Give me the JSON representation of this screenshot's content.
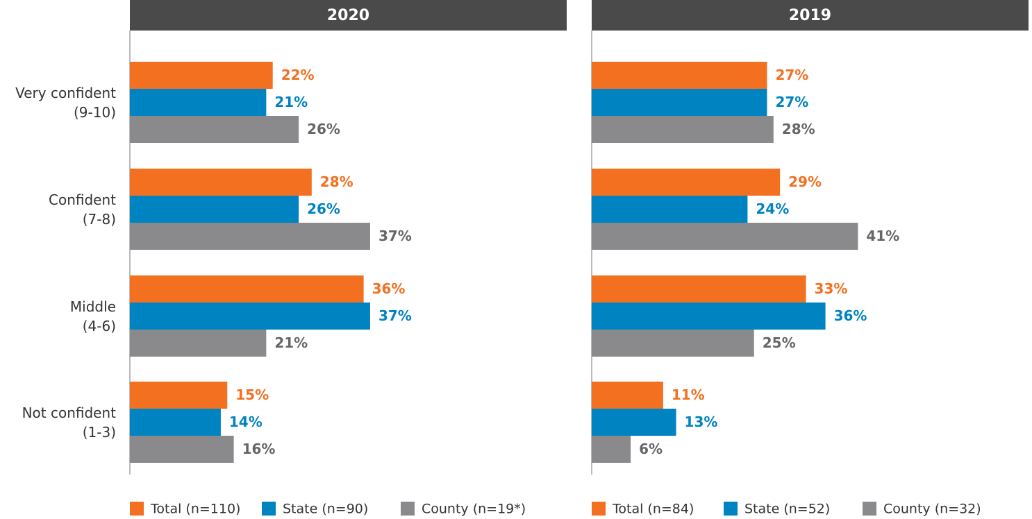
{
  "chart_data": [
    {
      "type": "bar",
      "title": "2020",
      "categories": [
        "Very confident\n(9-10)",
        "Confident\n(7-8)",
        "Middle\n(4-6)",
        "Not confident\n(1-3)"
      ],
      "series": [
        {
          "name": "Total (n=110)",
          "color": "#f37021",
          "values": [
            22,
            28,
            36,
            15
          ],
          "value_labels": [
            "22%",
            "28%",
            "36%",
            "15%"
          ]
        },
        {
          "name": "State (n=90)",
          "color": "#0083c1",
          "values": [
            21,
            26,
            37,
            14
          ],
          "value_labels": [
            "21%",
            "26%",
            "37%",
            "14%"
          ]
        },
        {
          "name": "County (n=19*)",
          "color": "#8a8a8c",
          "values": [
            26,
            37,
            21,
            16
          ],
          "value_labels": [
            "26%",
            "37%",
            "21%",
            "16%"
          ]
        }
      ]
    },
    {
      "type": "bar",
      "title": "2019",
      "series": [
        {
          "name": "Total (n=84)",
          "color": "#f37021",
          "values": [
            27,
            29,
            33,
            11
          ],
          "value_labels": [
            "27%",
            "29%",
            "33%",
            "11%"
          ]
        },
        {
          "name": "State (n=52)",
          "color": "#0083c1",
          "values": [
            27,
            24,
            36,
            13
          ],
          "value_labels": [
            "27%",
            "24%",
            "36%",
            "13%"
          ]
        },
        {
          "name": "County (n=32)",
          "color": "#8a8a8c",
          "values": [
            28,
            41,
            25,
            6
          ],
          "value_labels": [
            "28%",
            "41%",
            "25%",
            "6%"
          ]
        }
      ]
    }
  ]
}
